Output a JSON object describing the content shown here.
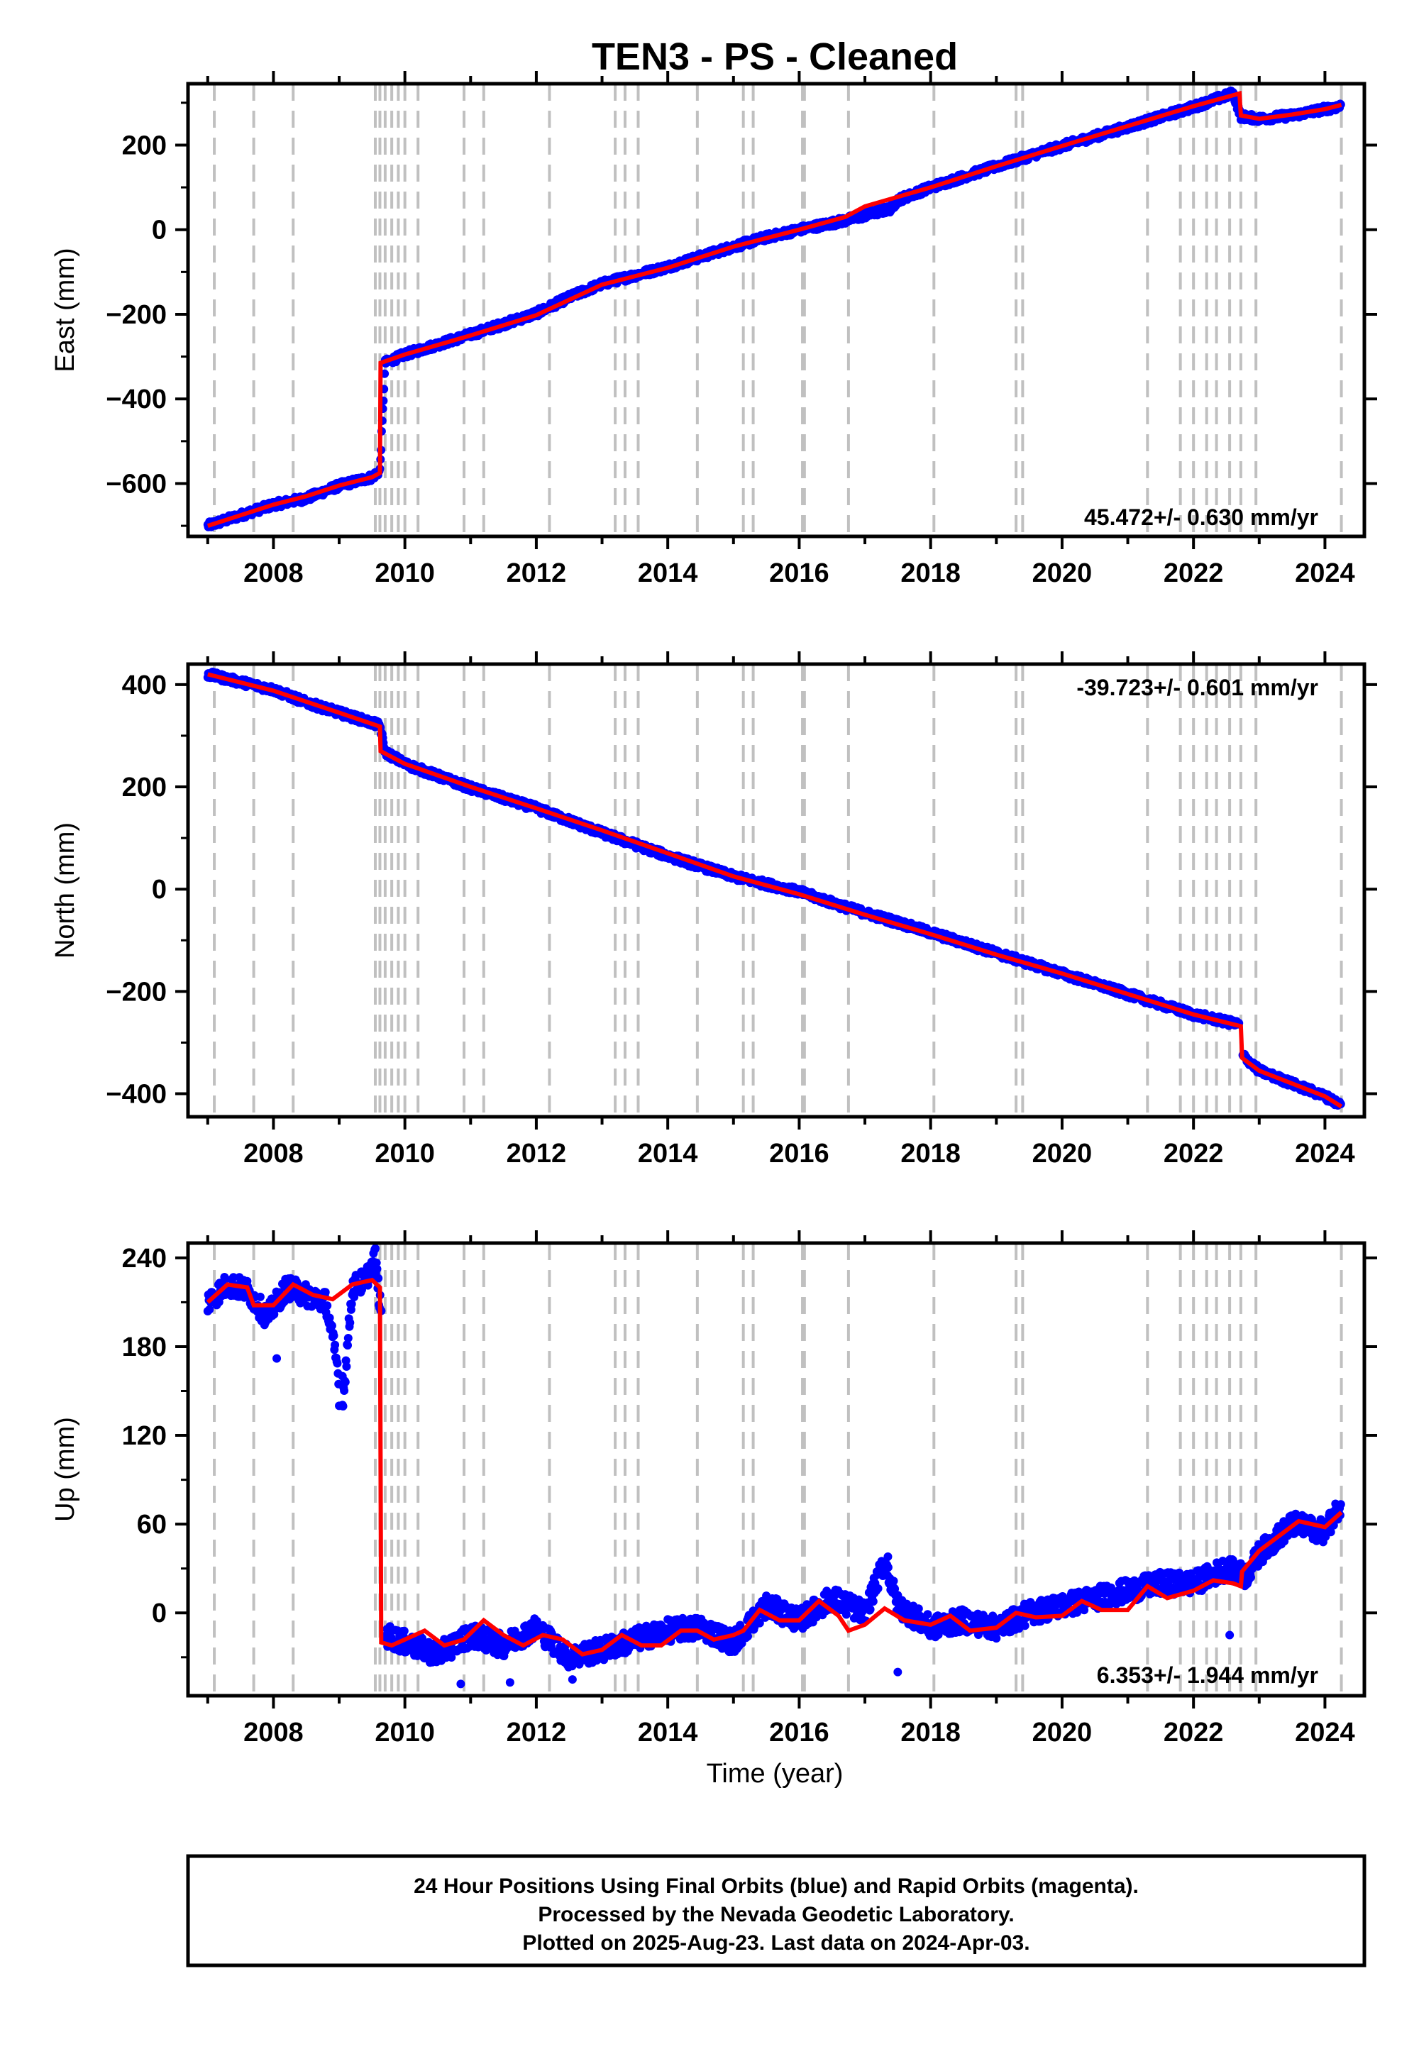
{
  "chart_data": {
    "type": "scatter",
    "title": "TEN3  - PS - Cleaned",
    "xlabel": "Time (year)",
    "xlim": [
      2006.7,
      2024.6
    ],
    "x_ticks": [
      "2008",
      "2010",
      "2012",
      "2014",
      "2016",
      "2018",
      "2020",
      "2022",
      "2024"
    ],
    "grid": false,
    "event_lines": [
      2007.1,
      2007.7,
      2008.3,
      2009.55,
      2009.62,
      2009.7,
      2009.8,
      2009.9,
      2010.0,
      2010.2,
      2010.9,
      2011.2,
      2012.2,
      2013.2,
      2013.35,
      2013.55,
      2014.45,
      2015.15,
      2015.3,
      2016.05,
      2016.08,
      2016.75,
      2018.05,
      2019.3,
      2019.4,
      2021.3,
      2021.8,
      2022.0,
      2022.2,
      2022.35,
      2022.55,
      2022.72,
      2022.95,
      2024.25
    ],
    "panels": [
      {
        "component": "East",
        "ylabel": "East (mm)",
        "ylim": [
          -725,
          345
        ],
        "y_ticks": [
          -600,
          -400,
          -200,
          0,
          200
        ],
        "rate_label": "45.472+/- 0.630 mm/yr",
        "series": [
          {
            "kind": "points",
            "x": [
              2007.0,
              2007.5,
              2008.0,
              2008.5,
              2009.0,
              2009.5,
              2009.62,
              2009.7,
              2010.0,
              2011.0,
              2012.0,
              2012.5,
              2013.0,
              2014.0,
              2015.0,
              2015.5,
              2016.0,
              2016.7,
              2017.4,
              2017.5,
              2018.0,
              2019.0,
              2020.0,
              2021.0,
              2022.0,
              2022.6,
              2022.72,
              2023.0,
              2023.5,
              2024.0,
              2024.25
            ],
            "values": [
              -700,
              -675,
              -650,
              -635,
              -605,
              -585,
              -570,
              -315,
              -295,
              -248,
              -198,
              -160,
              -128,
              -88,
              -40,
              -18,
              0,
              22,
              50,
              70,
              100,
              150,
              198,
              243,
              290,
              322,
              268,
              262,
              270,
              285,
              292
            ]
          },
          {
            "kind": "model",
            "x": [
              2007.0,
              2007.5,
              2008.0,
              2008.5,
              2009.0,
              2009.5,
              2009.62,
              2009.63,
              2010.0,
              2011.0,
              2012.0,
              2013.0,
              2014.0,
              2015.0,
              2016.0,
              2016.7,
              2017.0,
              2018.0,
              2019.0,
              2020.0,
              2021.0,
              2022.0,
              2022.7,
              2022.72,
              2023.0,
              2023.5,
              2024.0,
              2024.25
            ],
            "values": [
              -700,
              -675,
              -650,
              -630,
              -605,
              -585,
              -575,
              -315,
              -295,
              -250,
              -202,
              -130,
              -90,
              -40,
              0,
              30,
              55,
              100,
              150,
              198,
              245,
              292,
              322,
              270,
              262,
              272,
              285,
              295
            ]
          }
        ]
      },
      {
        "component": "North",
        "ylabel": "North (mm)",
        "ylim": [
          -445,
          440
        ],
        "y_ticks": [
          -400,
          -200,
          0,
          200,
          400
        ],
        "rate_label": "-39.723+/- 0.601 mm/yr",
        "series": [
          {
            "kind": "points",
            "x": [
              2007.0,
              2007.5,
              2008.0,
              2008.5,
              2009.0,
              2009.5,
              2009.62,
              2009.7,
              2010.0,
              2011.0,
              2012.0,
              2013.0,
              2014.0,
              2015.0,
              2016.0,
              2016.7,
              2017.5,
              2018.0,
              2019.0,
              2020.0,
              2021.0,
              2022.0,
              2022.7,
              2022.75,
              2023.0,
              2023.5,
              2024.0,
              2024.25
            ],
            "values": [
              420,
              405,
              390,
              365,
              345,
              325,
              320,
              268,
              245,
              198,
              158,
              110,
              65,
              25,
              -5,
              -35,
              -65,
              -85,
              -125,
              -165,
              -205,
              -245,
              -265,
              -325,
              -355,
              -380,
              -405,
              -422
            ]
          },
          {
            "kind": "model",
            "x": [
              2007.0,
              2008.0,
              2009.0,
              2009.62,
              2009.63,
              2010.0,
              2011.0,
              2012.0,
              2013.0,
              2014.0,
              2015.0,
              2016.0,
              2017.0,
              2018.0,
              2019.0,
              2020.0,
              2021.0,
              2022.0,
              2022.72,
              2022.74,
              2023.0,
              2024.0,
              2024.25
            ],
            "values": [
              420,
              388,
              345,
              318,
              270,
              245,
              200,
              158,
              115,
              70,
              25,
              -10,
              -50,
              -88,
              -128,
              -165,
              -205,
              -245,
              -268,
              -330,
              -355,
              -405,
              -425
            ]
          }
        ]
      },
      {
        "component": "Up",
        "ylabel": "Up (mm)",
        "ylim": [
          -56,
          250
        ],
        "y_ticks": [
          0,
          60,
          120,
          180,
          240
        ],
        "rate_label": "6.353+/- 1.944 mm/yr",
        "series": [
          {
            "kind": "points",
            "x": [
              2007.0,
              2007.3,
              2007.6,
              2007.9,
              2008.2,
              2008.5,
              2008.8,
              2009.0,
              2009.05,
              2009.2,
              2009.4,
              2009.55,
              2009.65,
              2009.7,
              2010.0,
              2010.5,
              2011.0,
              2011.5,
              2012.0,
              2012.5,
              2013.0,
              2013.5,
              2014.0,
              2014.5,
              2015.0,
              2015.5,
              2016.0,
              2016.5,
              2017.0,
              2017.3,
              2017.5,
              2018.0,
              2018.5,
              2019.0,
              2019.5,
              2020.0,
              2020.5,
              2021.0,
              2021.5,
              2022.0,
              2022.5,
              2022.8,
              2023.0,
              2023.5,
              2024.0,
              2024.25
            ],
            "values": [
              210,
              222,
              218,
              200,
              220,
              215,
              210,
              160,
              140,
              220,
              225,
              240,
              195,
              -15,
              -20,
              -28,
              -15,
              -22,
              -10,
              -30,
              -25,
              -18,
              -12,
              -10,
              -20,
              5,
              -5,
              10,
              0,
              35,
              5,
              -10,
              -5,
              -10,
              0,
              5,
              10,
              15,
              20,
              20,
              30,
              25,
              40,
              60,
              55,
              75
            ]
          },
          {
            "kind": "model",
            "x": [
              2007.0,
              2007.3,
              2007.6,
              2007.7,
              2008.0,
              2008.3,
              2008.6,
              2008.9,
              2009.2,
              2009.5,
              2009.62,
              2009.64,
              2009.8,
              2010.0,
              2010.3,
              2010.6,
              2010.9,
              2011.2,
              2011.5,
              2011.8,
              2012.1,
              2012.4,
              2012.7,
              2013.0,
              2013.3,
              2013.6,
              2013.9,
              2014.2,
              2014.45,
              2014.7,
              2015.0,
              2015.15,
              2015.4,
              2015.7,
              2016.0,
              2016.3,
              2016.6,
              2016.75,
              2017.0,
              2017.3,
              2017.6,
              2018.0,
              2018.3,
              2018.6,
              2019.0,
              2019.3,
              2019.6,
              2020.0,
              2020.3,
              2020.6,
              2021.0,
              2021.3,
              2021.6,
              2022.0,
              2022.3,
              2022.6,
              2022.72,
              2022.74,
              2023.0,
              2023.3,
              2023.6,
              2024.0,
              2024.25
            ],
            "values": [
              210,
              222,
              220,
              208,
              208,
              222,
              215,
              212,
              222,
              225,
              220,
              -20,
              -22,
              -18,
              -12,
              -22,
              -18,
              -5,
              -15,
              -22,
              -15,
              -18,
              -28,
              -25,
              -15,
              -22,
              -22,
              -12,
              -12,
              -18,
              -15,
              -12,
              2,
              -5,
              -5,
              8,
              -2,
              -12,
              -8,
              3,
              -5,
              -8,
              -2,
              -12,
              -10,
              0,
              -3,
              -2,
              8,
              2,
              2,
              18,
              10,
              15,
              22,
              20,
              18,
              28,
              42,
              52,
              62,
              58,
              68
            ]
          }
        ]
      }
    ]
  },
  "footer": {
    "line1": "24 Hour Positions Using Final Orbits (blue) and Rapid Orbits (magenta).",
    "line2": "Processed by the Nevada Geodetic Laboratory.",
    "line3": "Plotted on 2025-Aug-23. Last data on 2024-Apr-03."
  },
  "colors": {
    "points": "#0000ff",
    "model": "#ff0000",
    "event_lines": "#c0c0c0"
  }
}
